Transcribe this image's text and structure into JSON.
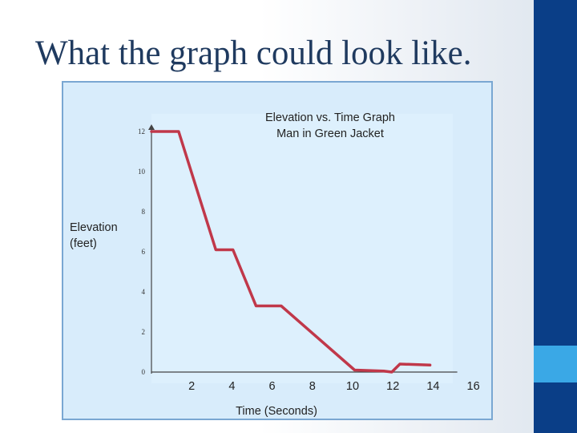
{
  "slide": {
    "title": "What the graph could look like.",
    "colors": {
      "sidebar": "#0a3e87",
      "accent": "#3aa8e6",
      "plot_bg": "#d8ecfb",
      "line": "#c0384a"
    }
  },
  "chart_data": {
    "type": "line",
    "title": "Elevation vs. Time Graph",
    "subtitle": "Man in Green Jacket",
    "ylabel_line1": "Elevation",
    "ylabel_line2": "(feet)",
    "xlabel": "Time (Seconds)",
    "xticks": [
      2,
      4,
      6,
      8,
      10,
      12,
      14,
      16
    ],
    "yticks": [
      0,
      2,
      4,
      6,
      8,
      10,
      12
    ],
    "xlim": [
      0,
      16
    ],
    "ylim": [
      0,
      12
    ],
    "series": [
      {
        "x": [
          0,
          1.35,
          3.2,
          4.05,
          5.2,
          6.45,
          10.1,
          11.55,
          11.95,
          12.35,
          13.85
        ],
        "y": [
          12,
          12,
          6.1,
          6.1,
          3.3,
          3.3,
          0.1,
          0.05,
          0,
          0.4,
          0.35
        ]
      }
    ]
  }
}
